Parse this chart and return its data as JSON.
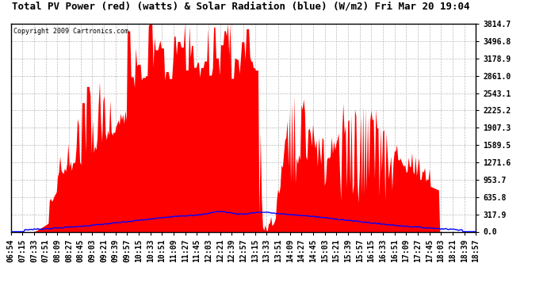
{
  "title": "Total PV Power (red) (watts) & Solar Radiation (blue) (W/m2) Fri Mar 20 19:04",
  "copyright": "Copyright 2009 Cartronics.com",
  "background_color": "#ffffff",
  "plot_bg_color": "#ffffff",
  "grid_color": "#aaaaaa",
  "ymax": 3814.7,
  "yticks": [
    0.0,
    317.9,
    635.8,
    953.7,
    1271.6,
    1589.5,
    1907.3,
    2225.2,
    2543.1,
    2861.0,
    3178.9,
    3496.8,
    3814.7
  ],
  "red_color": "#ff0000",
  "blue_color": "#0000ff",
  "title_fontsize": 9,
  "tick_fontsize": 7,
  "x_tick_labels": [
    "06:54",
    "07:15",
    "07:33",
    "07:51",
    "08:09",
    "08:27",
    "08:45",
    "09:03",
    "09:21",
    "09:39",
    "09:57",
    "10:15",
    "10:33",
    "10:51",
    "11:09",
    "11:27",
    "11:45",
    "12:03",
    "12:21",
    "12:39",
    "12:57",
    "13:15",
    "13:33",
    "13:51",
    "14:09",
    "14:27",
    "14:45",
    "15:03",
    "15:21",
    "15:39",
    "15:57",
    "16:15",
    "16:33",
    "16:51",
    "17:09",
    "17:27",
    "17:45",
    "18:03",
    "18:21",
    "18:39",
    "18:57"
  ]
}
